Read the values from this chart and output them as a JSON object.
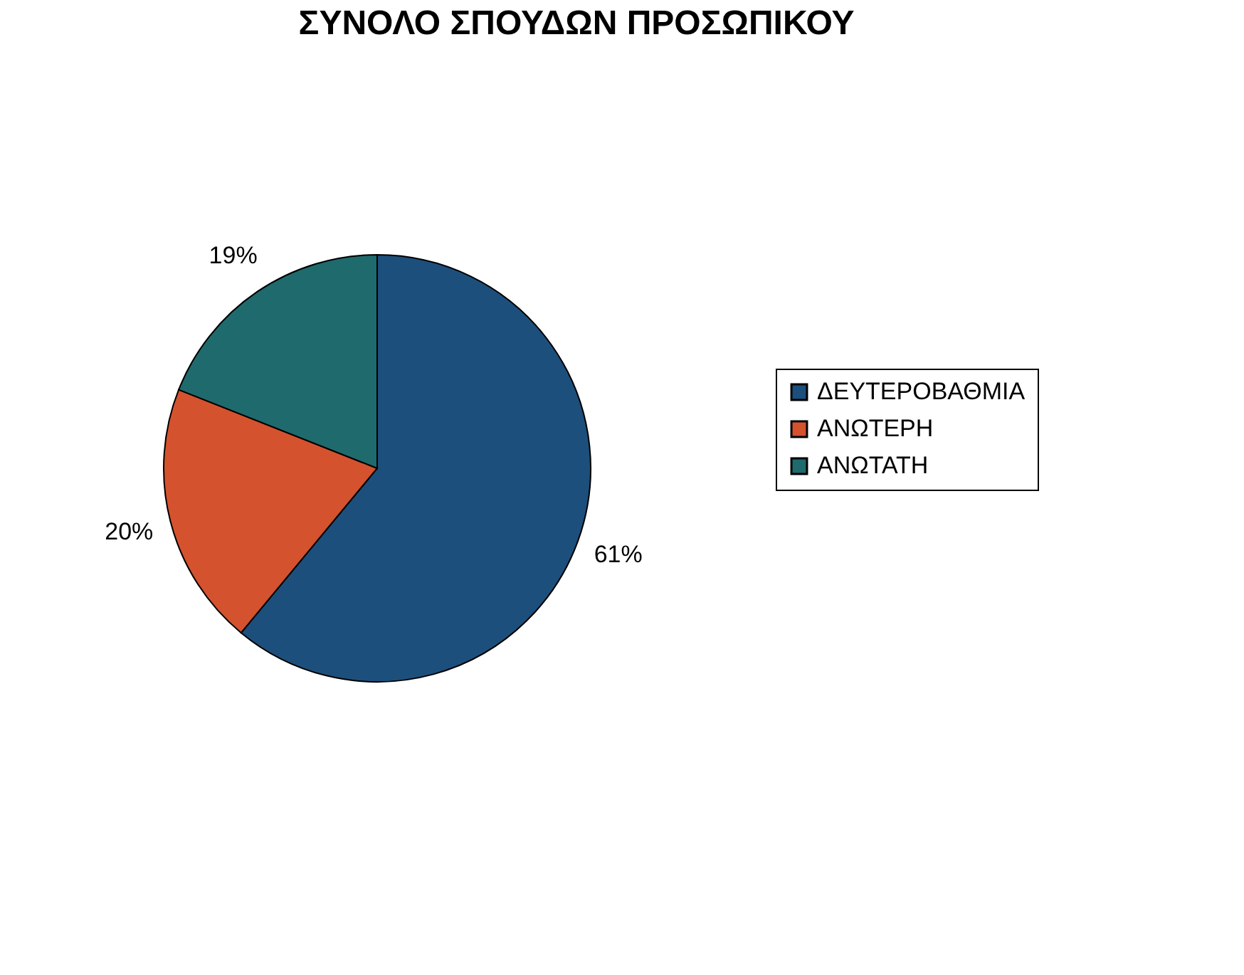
{
  "chart_data": {
    "type": "pie",
    "title": "ΣΥΝΟΛΟ ΣΠΟΥΔΩΝ ΠΡΟΣΩΠΙΚΟΥ",
    "categories": [
      "ΔΕΥΤΕΡΟΒΑΘΜΙΑ",
      "ΑΝΩΤΕΡΗ",
      "ΑΝΩΤΑΤΗ"
    ],
    "values": [
      61,
      20,
      19
    ],
    "value_labels": [
      "61%",
      "20%",
      "19%"
    ],
    "colors": [
      "#1d4f7c",
      "#d4522e",
      "#1f6a6c"
    ],
    "legend": "right"
  }
}
